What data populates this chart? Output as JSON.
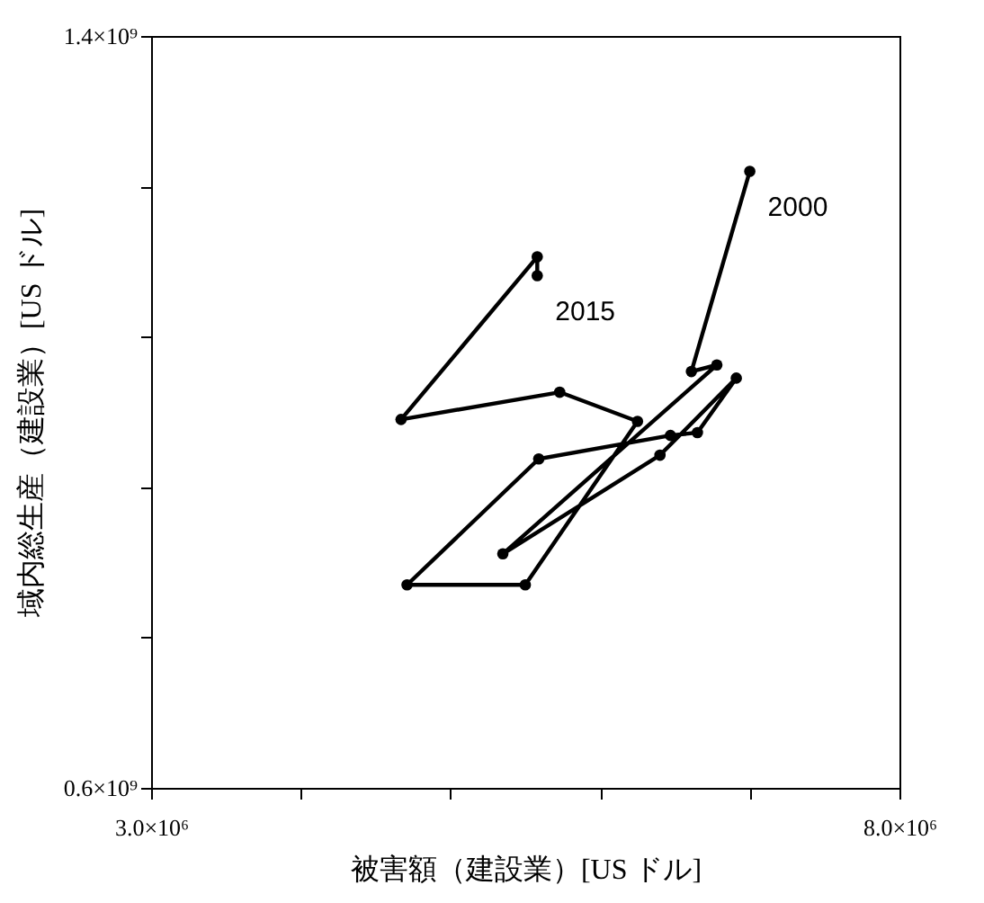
{
  "chart_data": {
    "type": "line",
    "xlabel": "被害額（建設業）[US ドル]",
    "ylabel": "域内総生産（建設業）[US ドル]",
    "x": [
      7000000,
      6610000,
      6780000,
      5350000,
      6400000,
      6910000,
      6650000,
      6470000,
      5590000,
      4710000,
      5500000,
      6250000,
      5730000,
      4670000,
      5580000,
      5580000
    ],
    "series": [
      {
        "color": "#000000",
        "values": [
          1256000000,
          1043000000,
          1050000000,
          849000000,
          954000000,
          1036000000,
          978000000,
          975000000,
          950000000,
          816000000,
          816000000,
          990000000,
          1021000000,
          992000000,
          1165000000,
          1145000000
        ]
      }
    ],
    "xlim": [
      3000000,
      8000000
    ],
    "xticks": [
      {
        "value": 3000000,
        "label": "3.0×10⁶"
      },
      {
        "value": 4000000,
        "label": null
      },
      {
        "value": 5000000,
        "label": null
      },
      {
        "value": 6000000,
        "label": null
      },
      {
        "value": 7000000,
        "label": null
      },
      {
        "value": 8000000,
        "label": "8.0×10⁶"
      }
    ],
    "ylim": [
      600000000,
      1400000000
    ],
    "yticks": [
      {
        "value": 600000000,
        "label": "0.6×10⁹"
      },
      {
        "value": 760000000,
        "label": null
      },
      {
        "value": 920000000,
        "label": null
      },
      {
        "value": 1080000000,
        "label": null
      },
      {
        "value": 1240000000,
        "label": null
      },
      {
        "value": 1400000000,
        "label": "1.4×10⁹"
      }
    ],
    "annotations": [
      {
        "text": "2000",
        "x": 7000000,
        "y": 1256000000
      },
      {
        "text": "2015",
        "x": 5580000,
        "y": 1145000000
      }
    ],
    "marker": "circle",
    "line_style": "solid",
    "grid": false
  }
}
